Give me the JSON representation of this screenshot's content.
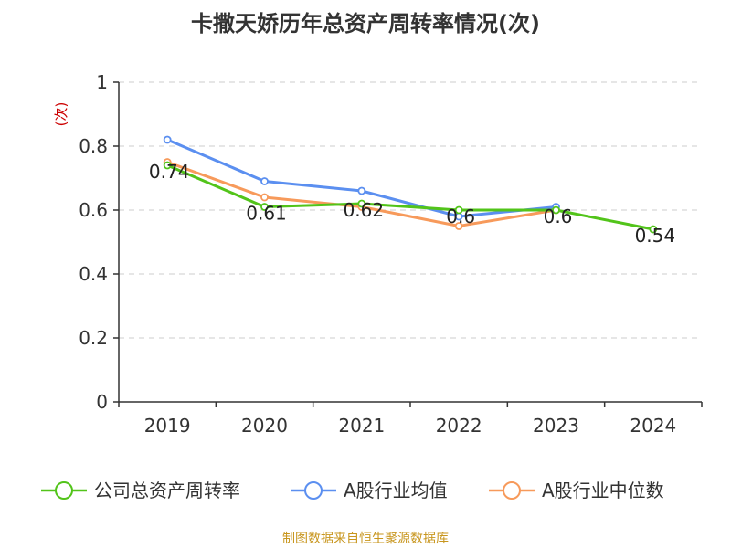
{
  "source_text": "制图数据来自恒生聚源数据库",
  "chart_data": {
    "type": "line",
    "title": "卡撒天娇历年总资产周转率情况(次)",
    "xlabel": "",
    "ylabel": "(次)",
    "categories": [
      "2019",
      "2020",
      "2021",
      "2022",
      "2023",
      "2024"
    ],
    "ylim": [
      0,
      1
    ],
    "yticks": [
      0,
      0.2,
      0.4,
      0.6,
      0.8,
      1
    ],
    "ytick_labels": [
      "0",
      "0.2",
      "0.4",
      "0.6",
      "0.8",
      "1"
    ],
    "grid": true,
    "legend_position": "bottom",
    "series": [
      {
        "name": "公司总资产周转率",
        "color": "#52c41a",
        "values": [
          0.74,
          0.61,
          0.62,
          0.6,
          0.6,
          0.54
        ],
        "labels": [
          "0.74",
          "0.61",
          "0.62",
          "0.6",
          "0.6",
          "0.54"
        ]
      },
      {
        "name": "A股行业均值",
        "color": "#5b8ff0",
        "values": [
          0.82,
          0.69,
          0.66,
          0.58,
          0.61,
          null
        ],
        "labels": []
      },
      {
        "name": "A股行业中位数",
        "color": "#f79a5b",
        "values": [
          0.75,
          0.64,
          0.61,
          0.55,
          0.6,
          null
        ],
        "labels": []
      }
    ]
  }
}
